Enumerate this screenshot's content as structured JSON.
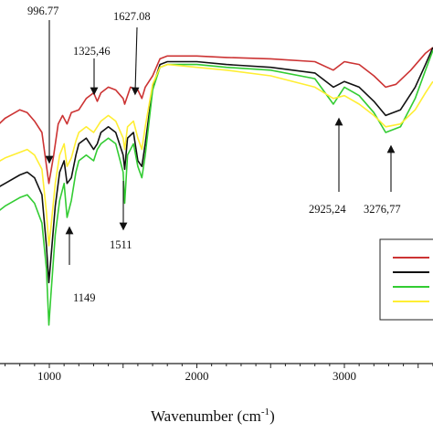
{
  "chart_data": {
    "type": "line",
    "title": "",
    "xlabel": "Wavenumber (cm",
    "xlabel_sup": "-1",
    "xlabel_tail": ")",
    "ylabel": "",
    "xlim": [
      600,
      3600
    ],
    "ylim": [
      0,
      100
    ],
    "x_ticks": [
      {
        "value": 1000,
        "label": "1000"
      },
      {
        "value": 2000,
        "label": "2000"
      },
      {
        "value": 3000,
        "label": "3000"
      }
    ],
    "grid": false,
    "legend": {
      "position": "bottom-right",
      "entries": [
        "",
        "",
        "",
        ""
      ]
    },
    "annotations": [
      {
        "label": "996.77",
        "x": 996.77
      },
      {
        "label": "1325,46",
        "x": 1325.46
      },
      {
        "label": "1627.08",
        "x": 1627.08
      },
      {
        "label": "1511",
        "x": 1511
      },
      {
        "label": "1149",
        "x": 1149
      },
      {
        "label": "2925,24",
        "x": 2925.24
      },
      {
        "label": "3276,77",
        "x": 3276.77
      }
    ],
    "series": [
      {
        "color": "#cc3333",
        "points": [
          [
            600,
            70
          ],
          [
            700,
            75
          ],
          [
            800,
            78
          ],
          [
            850,
            77
          ],
          [
            900,
            74
          ],
          [
            950,
            70
          ],
          [
            996.77,
            52
          ],
          [
            1030,
            62
          ],
          [
            1060,
            73
          ],
          [
            1090,
            76
          ],
          [
            1120,
            73
          ],
          [
            1149,
            77
          ],
          [
            1200,
            78
          ],
          [
            1250,
            82
          ],
          [
            1300,
            84
          ],
          [
            1325,
            81
          ],
          [
            1350,
            84
          ],
          [
            1400,
            86
          ],
          [
            1450,
            85
          ],
          [
            1500,
            82
          ],
          [
            1511,
            80
          ],
          [
            1550,
            86
          ],
          [
            1600,
            85
          ],
          [
            1627,
            82
          ],
          [
            1650,
            86
          ],
          [
            1700,
            90
          ],
          [
            1750,
            96
          ],
          [
            1800,
            97
          ],
          [
            2000,
            97
          ],
          [
            2200,
            96.5
          ],
          [
            2500,
            96
          ],
          [
            2800,
            95
          ],
          [
            2925,
            92
          ],
          [
            3000,
            95
          ],
          [
            3100,
            94
          ],
          [
            3200,
            90
          ],
          [
            3280,
            86
          ],
          [
            3350,
            87
          ],
          [
            3450,
            92
          ],
          [
            3550,
            98
          ],
          [
            3600,
            100
          ]
        ]
      },
      {
        "color": "#111111",
        "points": [
          [
            600,
            49
          ],
          [
            700,
            52
          ],
          [
            800,
            55
          ],
          [
            850,
            56
          ],
          [
            900,
            54
          ],
          [
            950,
            48
          ],
          [
            980,
            30
          ],
          [
            996.77,
            17
          ],
          [
            1010,
            25
          ],
          [
            1040,
            44
          ],
          [
            1070,
            56
          ],
          [
            1100,
            60
          ],
          [
            1120,
            52
          ],
          [
            1149,
            54
          ],
          [
            1180,
            62
          ],
          [
            1200,
            66
          ],
          [
            1250,
            68
          ],
          [
            1300,
            64
          ],
          [
            1325,
            66
          ],
          [
            1350,
            70
          ],
          [
            1400,
            72
          ],
          [
            1450,
            70
          ],
          [
            1500,
            62
          ],
          [
            1511,
            57
          ],
          [
            1530,
            68
          ],
          [
            1570,
            70
          ],
          [
            1600,
            60
          ],
          [
            1627,
            58
          ],
          [
            1650,
            66
          ],
          [
            1700,
            86
          ],
          [
            1750,
            94
          ],
          [
            1800,
            95
          ],
          [
            2000,
            95
          ],
          [
            2200,
            94
          ],
          [
            2500,
            93
          ],
          [
            2800,
            91
          ],
          [
            2925,
            86
          ],
          [
            3000,
            88
          ],
          [
            3100,
            86
          ],
          [
            3200,
            81
          ],
          [
            3280,
            76
          ],
          [
            3380,
            78
          ],
          [
            3480,
            86
          ],
          [
            3550,
            94
          ],
          [
            3600,
            100
          ]
        ]
      },
      {
        "color": "#33cc33",
        "points": [
          [
            600,
            40
          ],
          [
            700,
            44
          ],
          [
            800,
            47
          ],
          [
            850,
            48
          ],
          [
            900,
            45
          ],
          [
            950,
            38
          ],
          [
            980,
            22
          ],
          [
            996.77,
            2
          ],
          [
            1010,
            12
          ],
          [
            1040,
            34
          ],
          [
            1070,
            46
          ],
          [
            1100,
            52
          ],
          [
            1120,
            40
          ],
          [
            1149,
            46
          ],
          [
            1180,
            56
          ],
          [
            1200,
            60
          ],
          [
            1250,
            62
          ],
          [
            1300,
            60
          ],
          [
            1325,
            64
          ],
          [
            1350,
            66
          ],
          [
            1400,
            68
          ],
          [
            1450,
            66
          ],
          [
            1500,
            56
          ],
          [
            1511,
            45
          ],
          [
            1530,
            62
          ],
          [
            1570,
            66
          ],
          [
            1600,
            58
          ],
          [
            1627,
            54
          ],
          [
            1650,
            62
          ],
          [
            1700,
            85
          ],
          [
            1750,
            93
          ],
          [
            1800,
            94
          ],
          [
            2000,
            94
          ],
          [
            2200,
            93
          ],
          [
            2500,
            92
          ],
          [
            2800,
            89
          ],
          [
            2925,
            80
          ],
          [
            3000,
            86
          ],
          [
            3100,
            83
          ],
          [
            3200,
            77
          ],
          [
            3280,
            70
          ],
          [
            3380,
            72
          ],
          [
            3480,
            82
          ],
          [
            3550,
            92
          ],
          [
            3600,
            99
          ]
        ]
      },
      {
        "color": "#ffee33",
        "points": [
          [
            600,
            58
          ],
          [
            700,
            61
          ],
          [
            800,
            63
          ],
          [
            850,
            64
          ],
          [
            900,
            62
          ],
          [
            950,
            57
          ],
          [
            980,
            42
          ],
          [
            996.77,
            30
          ],
          [
            1010,
            36
          ],
          [
            1040,
            52
          ],
          [
            1070,
            62
          ],
          [
            1100,
            66
          ],
          [
            1120,
            58
          ],
          [
            1149,
            61
          ],
          [
            1180,
            67
          ],
          [
            1200,
            70
          ],
          [
            1250,
            72
          ],
          [
            1300,
            70
          ],
          [
            1325,
            72
          ],
          [
            1350,
            74
          ],
          [
            1400,
            76
          ],
          [
            1450,
            74
          ],
          [
            1500,
            68
          ],
          [
            1511,
            64
          ],
          [
            1530,
            72
          ],
          [
            1570,
            74
          ],
          [
            1600,
            68
          ],
          [
            1627,
            64
          ],
          [
            1650,
            72
          ],
          [
            1700,
            87
          ],
          [
            1750,
            93
          ],
          [
            1800,
            94
          ],
          [
            2000,
            93
          ],
          [
            2200,
            92
          ],
          [
            2500,
            90
          ],
          [
            2800,
            86
          ],
          [
            2925,
            82
          ],
          [
            3000,
            83
          ],
          [
            3100,
            80
          ],
          [
            3200,
            76
          ],
          [
            3280,
            72
          ],
          [
            3380,
            73
          ],
          [
            3480,
            78
          ],
          [
            3550,
            84
          ],
          [
            3600,
            88
          ]
        ]
      }
    ]
  }
}
